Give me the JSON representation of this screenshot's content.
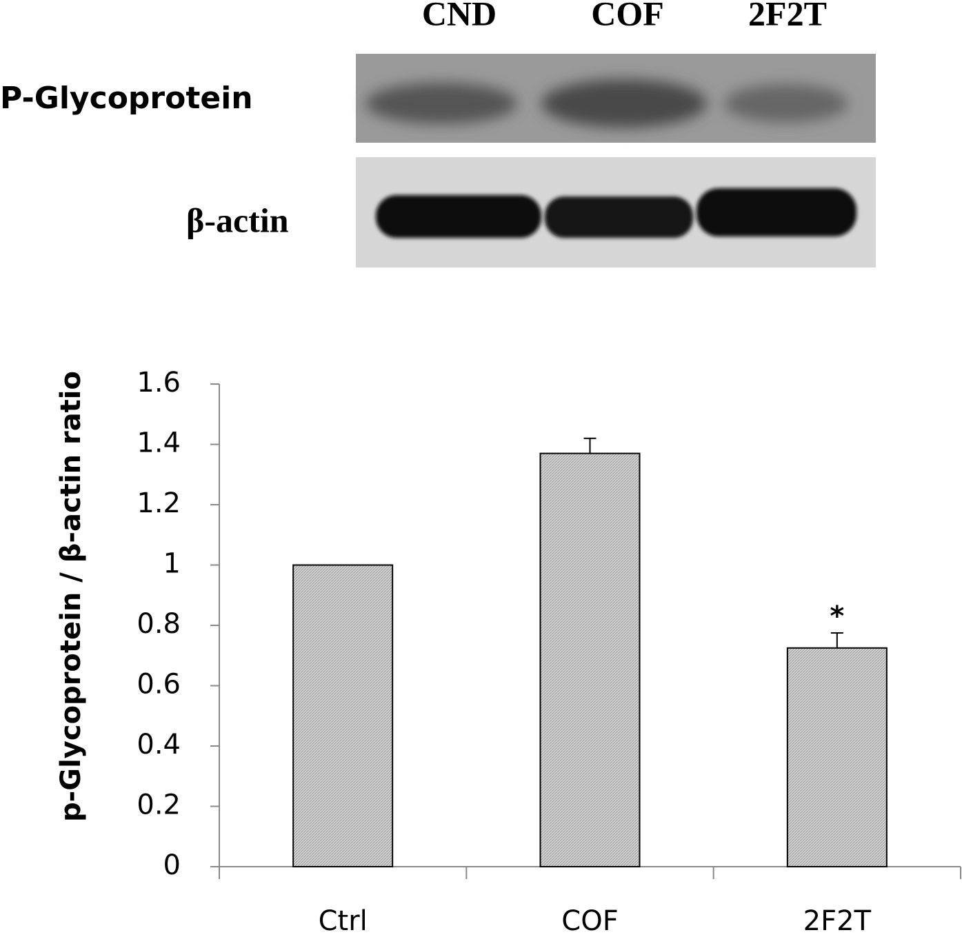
{
  "blot": {
    "lanes": [
      "CND",
      "COF",
      "2F2T"
    ],
    "rows": [
      "P-Glycoprotein",
      "β-actin"
    ]
  },
  "chart_data": {
    "type": "bar",
    "y_label": "p-Glycoprotein / β-actin ratio",
    "categories": [
      "Ctrl",
      "COF",
      "2F2T"
    ],
    "values": [
      1.0,
      1.37,
      0.725
    ],
    "errors": [
      0,
      0.05,
      0.05
    ],
    "color": "#c8c8c8",
    "annotations": [
      {
        "text": "*",
        "x": "2F2T"
      }
    ],
    "ylim": [
      0,
      1.6
    ],
    "yticks": [
      0,
      0.2,
      0.4,
      0.6,
      0.8,
      1,
      1.2,
      1.4,
      1.6
    ],
    "grid": false
  }
}
